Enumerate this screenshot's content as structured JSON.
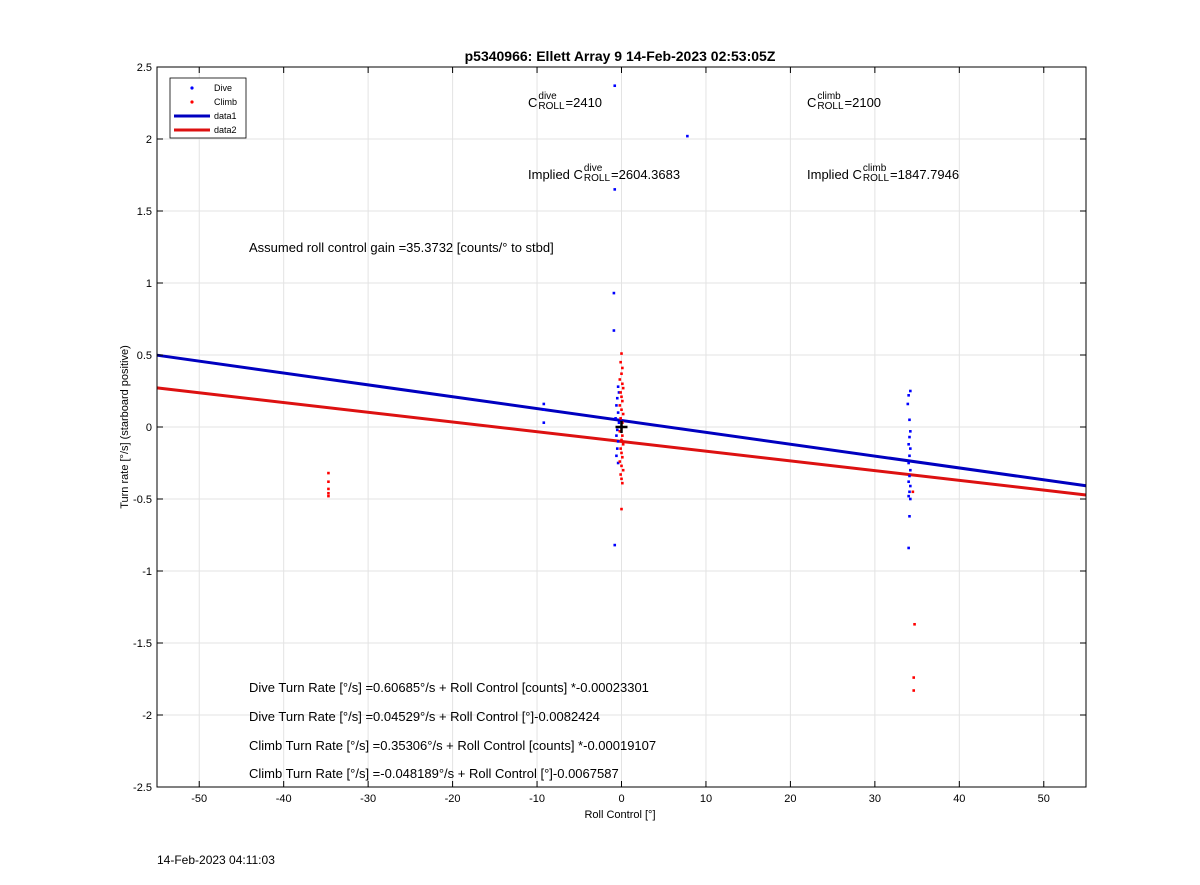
{
  "chart_data": {
    "type": "scatter",
    "title": "p5340966: Ellett Array 9 14-Feb-2023 02:53:05Z",
    "xlabel": "Roll Control [°]",
    "ylabel": "Turn rate [°/s] (starboard positive)",
    "xlim": [
      -55,
      55
    ],
    "ylim": [
      -2.5,
      2.5
    ],
    "xticks": [
      -50,
      -40,
      -30,
      -20,
      -10,
      0,
      10,
      20,
      30,
      40,
      50
    ],
    "yticks": [
      -2.5,
      -2,
      -1.5,
      -1,
      -0.5,
      0,
      0.5,
      1,
      1.5,
      2,
      2.5
    ],
    "grid": true,
    "legend_placement": "top-left",
    "colors": {
      "dive": "#0000ff",
      "climb": "#ff0000",
      "data1": "#0000c0",
      "data2": "#dd1111"
    },
    "series": [
      {
        "name": "Dive",
        "kind": "points",
        "points": [
          [
            -0.8,
            2.37
          ],
          [
            7.8,
            2.02
          ],
          [
            -0.8,
            1.65
          ],
          [
            -0.9,
            0.93
          ],
          [
            -0.9,
            0.67
          ],
          [
            -9.2,
            0.16
          ],
          [
            -9.2,
            0.12
          ],
          [
            -9.2,
            0.03
          ],
          [
            -0.4,
            0.28
          ],
          [
            -0.3,
            0.24
          ],
          [
            -0.5,
            0.2
          ],
          [
            -0.6,
            0.15
          ],
          [
            -0.4,
            0.1
          ],
          [
            -0.7,
            0.06
          ],
          [
            -0.3,
            0.03
          ],
          [
            -0.5,
            -0.02
          ],
          [
            -0.6,
            -0.06
          ],
          [
            -0.4,
            -0.1
          ],
          [
            -0.5,
            -0.15
          ],
          [
            -0.6,
            -0.2
          ],
          [
            -0.4,
            -0.25
          ],
          [
            -0.8,
            -0.82
          ],
          [
            34.2,
            0.25
          ],
          [
            34.0,
            0.22
          ],
          [
            33.9,
            0.16
          ],
          [
            34.1,
            0.05
          ],
          [
            34.2,
            -0.03
          ],
          [
            34.1,
            -0.07
          ],
          [
            34.0,
            -0.12
          ],
          [
            34.2,
            -0.15
          ],
          [
            34.1,
            -0.2
          ],
          [
            34.0,
            -0.25
          ],
          [
            34.2,
            -0.3
          ],
          [
            34.1,
            -0.34
          ],
          [
            34.0,
            -0.38
          ],
          [
            34.2,
            -0.41
          ],
          [
            34.1,
            -0.45
          ],
          [
            34.0,
            -0.48
          ],
          [
            34.2,
            -0.5
          ],
          [
            34.1,
            -0.62
          ],
          [
            34.0,
            -0.84
          ]
        ]
      },
      {
        "name": "Climb",
        "kind": "points",
        "points": [
          [
            -34.7,
            -0.32
          ],
          [
            -34.7,
            -0.38
          ],
          [
            -34.7,
            -0.43
          ],
          [
            -34.7,
            -0.46
          ],
          [
            -34.7,
            -0.48
          ],
          [
            0.0,
            0.51
          ],
          [
            -0.1,
            0.45
          ],
          [
            0.1,
            0.41
          ],
          [
            0.0,
            0.37
          ],
          [
            -0.2,
            0.33
          ],
          [
            0.1,
            0.3
          ],
          [
            0.2,
            0.27
          ],
          [
            -0.1,
            0.24
          ],
          [
            0.0,
            0.21
          ],
          [
            0.1,
            0.18
          ],
          [
            -0.2,
            0.15
          ],
          [
            0.0,
            0.12
          ],
          [
            0.2,
            0.09
          ],
          [
            -0.1,
            0.06
          ],
          [
            0.1,
            0.03
          ],
          [
            0.0,
            0.0
          ],
          [
            -0.2,
            -0.03
          ],
          [
            0.1,
            -0.06
          ],
          [
            0.0,
            -0.09
          ],
          [
            0.2,
            -0.12
          ],
          [
            -0.1,
            -0.15
          ],
          [
            0.0,
            -0.18
          ],
          [
            0.1,
            -0.21
          ],
          [
            -0.2,
            -0.24
          ],
          [
            0.0,
            -0.27
          ],
          [
            0.2,
            -0.3
          ],
          [
            -0.1,
            -0.33
          ],
          [
            0.0,
            -0.36
          ],
          [
            0.1,
            -0.39
          ],
          [
            0.0,
            -0.57
          ],
          [
            34.5,
            -0.45
          ],
          [
            34.7,
            -1.37
          ],
          [
            34.6,
            -1.74
          ],
          [
            34.6,
            -1.83
          ]
        ]
      },
      {
        "name": "data1",
        "kind": "line",
        "x": [
          -55,
          55
        ],
        "y": [
          0.4986,
          -0.408
        ]
      },
      {
        "name": "data2",
        "kind": "line",
        "x": [
          -55,
          55
        ],
        "y": [
          0.2715,
          -0.4721
        ]
      }
    ],
    "center_marker": {
      "x": 0,
      "y": 0
    }
  },
  "annotations": {
    "c_dive_base": "C",
    "c_dive_sup": "dive",
    "c_dive_sub": "ROLL",
    "c_dive_value": "=2410",
    "c_climb_base": "C",
    "c_climb_sup": "climb",
    "c_climb_sub": "ROLL",
    "c_climb_value": "=2100",
    "implied_prefix": "Implied C",
    "implied_dive_sup": "dive",
    "implied_dive_sub": "ROLL",
    "implied_dive_value": "=2604.3683",
    "implied_climb_sup": "climb",
    "implied_climb_sub": "ROLL",
    "implied_climb_value": "=1847.7946",
    "gain": "Assumed roll control gain =35.3732 [counts/° to stbd]",
    "eq1": "Dive Turn Rate [°/s] =0.60685°/s + Roll Control [counts] *-0.00023301",
    "eq2": "Dive Turn Rate [°/s] =0.04529°/s + Roll Control [°]-0.0082424",
    "eq3": "Climb Turn Rate [°/s] =0.35306°/s + Roll Control [counts] *-0.00019107",
    "eq4": "Climb Turn Rate [°/s] =-0.048189°/s + Roll Control [°]-0.0067587"
  },
  "footer": {
    "timestamp": "14-Feb-2023 04:11:03"
  }
}
